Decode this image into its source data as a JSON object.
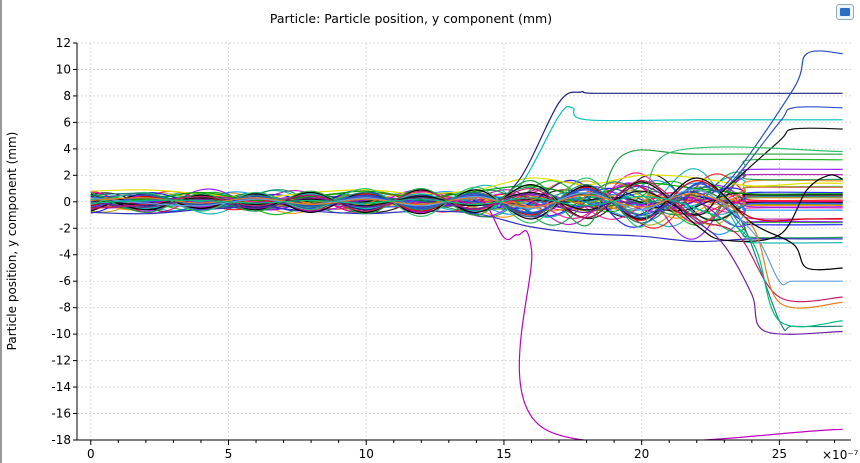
{
  "chart_data": {
    "type": "line",
    "title": "Particle: Particle position, y component (mm)",
    "xlabel": "",
    "ylabel": "Particle position, y component (mm)",
    "x_multiplier_label": "×10⁻⁷",
    "xlim": [
      -0.5,
      27.6
    ],
    "ylim": [
      -18,
      12
    ],
    "xticks": [
      0,
      5,
      10,
      15,
      20,
      25
    ],
    "yticks": [
      12,
      10,
      8,
      6,
      4,
      2,
      0,
      -2,
      -4,
      -6,
      -8,
      -10,
      -12,
      -14,
      -16,
      -18
    ],
    "grid": true,
    "legend": "none",
    "note": "many particle trajectories; oscillatory bundle near 0 then divergence after ~15",
    "series": [
      {
        "color": "#e0e000",
        "points": [
          [
            0,
            0.8
          ],
          [
            2,
            0.9
          ],
          [
            4,
            0.6
          ],
          [
            6,
            0.3
          ],
          [
            8,
            0.7
          ],
          [
            10,
            0.9
          ],
          [
            12,
            0.6
          ],
          [
            14,
            0.9
          ],
          [
            16,
            1.8
          ],
          [
            18,
            1.3
          ],
          [
            20,
            2.0
          ],
          [
            22,
            1.8
          ],
          [
            24,
            1.2
          ],
          [
            26,
            1.4
          ],
          [
            27.3,
            1.4
          ]
        ]
      },
      {
        "color": "#3030c0",
        "points": [
          [
            0,
            -0.8
          ],
          [
            2,
            -0.9
          ],
          [
            4,
            -0.6
          ],
          [
            6,
            -0.4
          ],
          [
            8,
            -0.7
          ],
          [
            10,
            -0.9
          ],
          [
            12,
            -0.7
          ],
          [
            14,
            -0.9
          ],
          [
            16,
            -1.9
          ],
          [
            18,
            -2.4
          ],
          [
            20,
            -2.6
          ],
          [
            22,
            -3.0
          ],
          [
            24,
            -2.8
          ],
          [
            26,
            -2.8
          ],
          [
            27.3,
            -2.8
          ]
        ]
      },
      {
        "color": "#00a000",
        "points": [
          [
            0,
            0.5
          ],
          [
            2,
            0.2
          ],
          [
            4,
            0.7
          ],
          [
            6,
            0.1
          ],
          [
            8,
            0.4
          ],
          [
            10,
            0.8
          ],
          [
            12,
            0.3
          ],
          [
            14,
            0.8
          ],
          [
            16,
            1.2
          ],
          [
            18,
            0.5
          ],
          [
            20,
            1.4
          ],
          [
            22,
            1.0
          ],
          [
            24,
            0.6
          ],
          [
            26,
            0.6
          ],
          [
            27.3,
            0.6
          ]
        ]
      },
      {
        "color": "#e00000",
        "points": [
          [
            0,
            -0.3
          ],
          [
            2,
            0.4
          ],
          [
            4,
            -0.5
          ],
          [
            6,
            0.2
          ],
          [
            8,
            -0.6
          ],
          [
            10,
            0.6
          ],
          [
            12,
            -0.7
          ],
          [
            14,
            0.7
          ],
          [
            16,
            -1.0
          ],
          [
            18,
            1.1
          ],
          [
            20,
            -1.4
          ],
          [
            22,
            1.6
          ],
          [
            24,
            -1.2
          ],
          [
            26,
            -1.3
          ],
          [
            27.3,
            -1.3
          ]
        ]
      },
      {
        "color": "#00c0c0",
        "points": [
          [
            0,
            0.2
          ],
          [
            2,
            -0.5
          ],
          [
            4,
            0.4
          ],
          [
            6,
            -0.3
          ],
          [
            8,
            0.6
          ],
          [
            10,
            -0.5
          ],
          [
            12,
            0.6
          ],
          [
            14,
            -0.7
          ],
          [
            15.5,
            1.0
          ],
          [
            17,
            6.5
          ],
          [
            17.5,
            7.1
          ],
          [
            18,
            6.2
          ],
          [
            22,
            6.2
          ],
          [
            27.3,
            6.2
          ]
        ]
      },
      {
        "color": "#c000c0",
        "points": [
          [
            0,
            -0.6
          ],
          [
            2,
            0.5
          ],
          [
            4,
            -0.4
          ],
          [
            6,
            0.5
          ],
          [
            8,
            -0.7
          ],
          [
            10,
            0.5
          ],
          [
            12,
            -0.8
          ],
          [
            14,
            0.4
          ],
          [
            15,
            -2.7
          ],
          [
            15.5,
            -2.5
          ],
          [
            16,
            -3.6
          ],
          [
            16.5,
            -17.2
          ],
          [
            27.3,
            -17.2
          ]
        ]
      },
      {
        "color": "#202080",
        "points": [
          [
            0,
            0.4
          ],
          [
            2,
            -0.3
          ],
          [
            4,
            0.5
          ],
          [
            6,
            -0.4
          ],
          [
            8,
            0.5
          ],
          [
            10,
            -0.6
          ],
          [
            12,
            0.5
          ],
          [
            14,
            -0.6
          ],
          [
            15.5,
            1.5
          ],
          [
            17,
            7.5
          ],
          [
            17.8,
            8.3
          ],
          [
            18.3,
            8.2
          ],
          [
            22,
            8.2
          ],
          [
            27.3,
            8.2
          ]
        ]
      },
      {
        "color": "#000000",
        "points": [
          [
            0,
            -0.7
          ],
          [
            2,
            0.6
          ],
          [
            4,
            -0.5
          ],
          [
            6,
            0.6
          ],
          [
            8,
            -0.8
          ],
          [
            10,
            0.7
          ],
          [
            12,
            -0.9
          ],
          [
            14,
            0.9
          ],
          [
            16,
            -1.3
          ],
          [
            18,
            1.2
          ],
          [
            20,
            -1.3
          ],
          [
            22,
            1.8
          ],
          [
            24,
            -1.6
          ],
          [
            25.5,
            -3.2
          ],
          [
            26,
            -5.0
          ],
          [
            27.3,
            -5.0
          ]
        ]
      },
      {
        "color": "#000000",
        "points": [
          [
            0,
            0.6
          ],
          [
            2,
            -0.6
          ],
          [
            4,
            0.5
          ],
          [
            6,
            -0.6
          ],
          [
            8,
            0.7
          ],
          [
            10,
            -0.8
          ],
          [
            12,
            0.9
          ],
          [
            14,
            -0.8
          ],
          [
            16,
            1.3
          ],
          [
            18,
            -1.2
          ],
          [
            20,
            1.5
          ],
          [
            22,
            -1.8
          ],
          [
            23,
            -2.9
          ],
          [
            25,
            -2.5
          ],
          [
            26,
            0.9
          ],
          [
            26.8,
            2.0
          ],
          [
            27.3,
            1.7
          ]
        ]
      },
      {
        "color": "#2050c0",
        "points": [
          [
            0,
            0.3
          ],
          [
            2,
            0.5
          ],
          [
            4,
            -0.2
          ],
          [
            6,
            0.4
          ],
          [
            8,
            -0.3
          ],
          [
            10,
            0.5
          ],
          [
            12,
            -0.4
          ],
          [
            14,
            0.6
          ],
          [
            16,
            -0.9
          ],
          [
            18,
            1.0
          ],
          [
            20,
            -1.2
          ],
          [
            22,
            1.4
          ],
          [
            23,
            1.2
          ],
          [
            25.5,
            8.5
          ],
          [
            26,
            11.2
          ],
          [
            27.3,
            11.2
          ]
        ]
      },
      {
        "color": "#3050d0",
        "points": [
          [
            0,
            -0.4
          ],
          [
            2,
            0.3
          ],
          [
            4,
            -0.6
          ],
          [
            6,
            0.3
          ],
          [
            8,
            -0.5
          ],
          [
            10,
            0.4
          ],
          [
            12,
            -0.5
          ],
          [
            14,
            0.5
          ],
          [
            16,
            -0.8
          ],
          [
            18,
            0.9
          ],
          [
            20,
            -1.0
          ],
          [
            22,
            1.3
          ],
          [
            23,
            1.0
          ],
          [
            25,
            6.0
          ],
          [
            25.5,
            7.1
          ],
          [
            27.3,
            7.1
          ]
        ]
      },
      {
        "color": "#101010",
        "points": [
          [
            0,
            0.1
          ],
          [
            2,
            -0.2
          ],
          [
            4,
            0.3
          ],
          [
            6,
            -0.2
          ],
          [
            8,
            0.2
          ],
          [
            10,
            -0.3
          ],
          [
            12,
            0.4
          ],
          [
            14,
            -0.3
          ],
          [
            16,
            0.7
          ],
          [
            18,
            -0.6
          ],
          [
            20,
            0.8
          ],
          [
            22,
            -1.0
          ],
          [
            23,
            0.9
          ],
          [
            25,
            4.6
          ],
          [
            25.5,
            5.5
          ],
          [
            27.3,
            5.5
          ]
        ]
      },
      {
        "color": "#20a040",
        "points": [
          [
            0,
            0.7
          ],
          [
            2,
            -0.8
          ],
          [
            4,
            0.6
          ],
          [
            6,
            -0.7
          ],
          [
            8,
            0.8
          ],
          [
            10,
            -0.9
          ],
          [
            12,
            1.0
          ],
          [
            14,
            -1.0
          ],
          [
            16,
            1.6
          ],
          [
            18,
            -1.8
          ],
          [
            19.3,
            3.5
          ],
          [
            22,
            3.6
          ],
          [
            27.3,
            3.6
          ]
        ]
      },
      {
        "color": "#30c070",
        "points": [
          [
            0,
            -0.2
          ],
          [
            2,
            0.7
          ],
          [
            4,
            -0.7
          ],
          [
            6,
            0.7
          ],
          [
            8,
            -0.6
          ],
          [
            10,
            1.0
          ],
          [
            12,
            -1.1
          ],
          [
            14,
            1.1
          ],
          [
            16,
            -1.6
          ],
          [
            18,
            1.8
          ],
          [
            20,
            -1.9
          ],
          [
            21,
            3.7
          ],
          [
            27.3,
            3.8
          ]
        ]
      },
      {
        "color": "#7020a0",
        "points": [
          [
            0,
            0.0
          ],
          [
            2,
            -0.4
          ],
          [
            4,
            0.2
          ],
          [
            6,
            -0.5
          ],
          [
            8,
            0.3
          ],
          [
            10,
            -0.4
          ],
          [
            12,
            0.3
          ],
          [
            14,
            -0.5
          ],
          [
            16,
            0.6
          ],
          [
            18,
            -0.8
          ],
          [
            20,
            1.2
          ],
          [
            22,
            -1.5
          ],
          [
            23,
            -3.3
          ],
          [
            24,
            -7.0
          ],
          [
            24.5,
            -9.8
          ],
          [
            27.3,
            -9.8
          ]
        ]
      },
      {
        "color": "#208080",
        "points": [
          [
            0,
            0.5
          ],
          [
            2,
            0.6
          ],
          [
            4,
            -0.3
          ],
          [
            6,
            0.5
          ],
          [
            8,
            -0.4
          ],
          [
            10,
            0.7
          ],
          [
            12,
            -0.6
          ],
          [
            14,
            0.7
          ],
          [
            16,
            -1.1
          ],
          [
            18,
            1.3
          ],
          [
            20,
            -1.6
          ],
          [
            22,
            1.1
          ],
          [
            23.5,
            -1.0
          ],
          [
            25,
            -9.0
          ],
          [
            25.5,
            -9.4
          ],
          [
            27.3,
            -9.4
          ]
        ]
      },
      {
        "color": "#c02060",
        "points": [
          [
            0,
            -0.5
          ],
          [
            2,
            -0.2
          ],
          [
            4,
            0.4
          ],
          [
            6,
            -0.3
          ],
          [
            8,
            0.5
          ],
          [
            10,
            -0.7
          ],
          [
            12,
            0.8
          ],
          [
            14,
            -0.6
          ],
          [
            16,
            1.0
          ],
          [
            18,
            -1.2
          ],
          [
            20,
            1.6
          ],
          [
            22,
            -1.3
          ],
          [
            23.5,
            -2.5
          ],
          [
            25,
            -7.2
          ],
          [
            27.3,
            -7.2
          ]
        ]
      },
      {
        "color": "#60a0e0",
        "points": [
          [
            0,
            0.3
          ],
          [
            2,
            -0.1
          ],
          [
            4,
            -0.3
          ],
          [
            6,
            0.2
          ],
          [
            8,
            -0.2
          ],
          [
            10,
            0.3
          ],
          [
            12,
            -0.3
          ],
          [
            14,
            0.4
          ],
          [
            16,
            -0.5
          ],
          [
            18,
            0.7
          ],
          [
            20,
            -0.6
          ],
          [
            22,
            0.9
          ],
          [
            24,
            -2.2
          ],
          [
            25,
            -6.0
          ],
          [
            25.5,
            -6.0
          ],
          [
            27.3,
            -6.0
          ]
        ]
      },
      {
        "color": "#e08020",
        "points": [
          [
            0,
            0.1
          ],
          [
            2,
            0.3
          ],
          [
            4,
            -0.1
          ],
          [
            6,
            0.3
          ],
          [
            8,
            -0.2
          ],
          [
            10,
            0.2
          ],
          [
            12,
            -0.2
          ],
          [
            14,
            0.3
          ],
          [
            16,
            -0.4
          ],
          [
            18,
            0.5
          ],
          [
            20,
            -0.4
          ],
          [
            22,
            0.6
          ],
          [
            24,
            -1.8
          ],
          [
            25,
            -7.6
          ],
          [
            27.3,
            -7.6
          ]
        ]
      },
      {
        "color": "#00c080",
        "points": [
          [
            0,
            -0.1
          ],
          [
            2,
            0.1
          ],
          [
            4,
            0.1
          ],
          [
            6,
            -0.1
          ],
          [
            8,
            0.1
          ],
          [
            10,
            -0.1
          ],
          [
            12,
            0.2
          ],
          [
            14,
            -0.2
          ],
          [
            16,
            0.3
          ],
          [
            18,
            -0.3
          ],
          [
            20,
            0.4
          ],
          [
            22,
            -0.5
          ],
          [
            24,
            -3.0
          ],
          [
            25,
            -9.0
          ],
          [
            27.3,
            -9.0
          ]
        ]
      }
    ]
  },
  "toolbar": {
    "icon": "plot-settings-icon"
  }
}
